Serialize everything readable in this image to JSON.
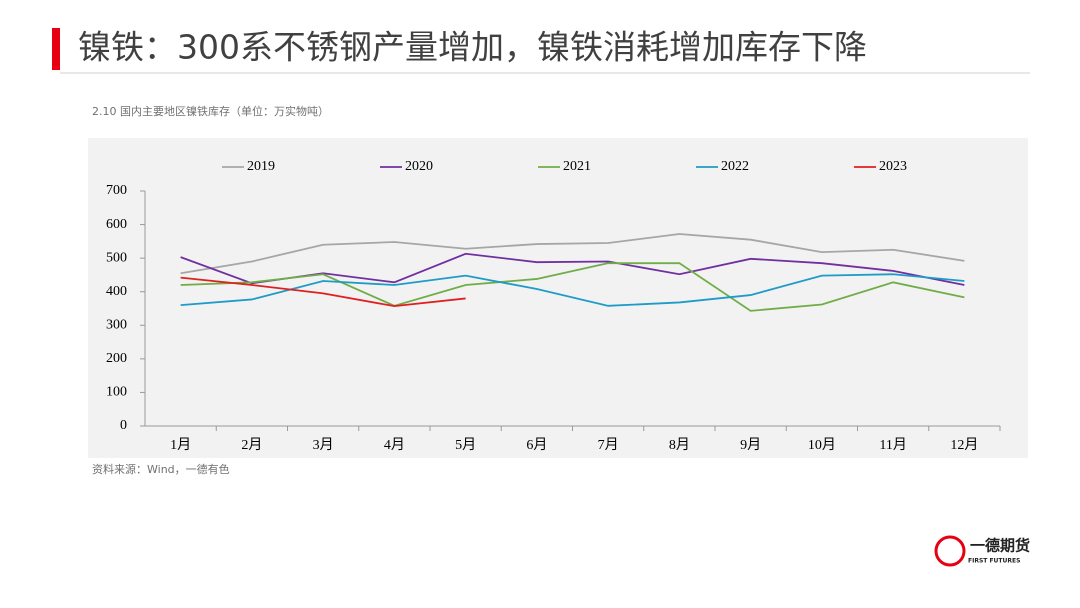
{
  "header": {
    "title": "镍铁：300系不锈钢产量增加，镍铁消耗增加库存下降"
  },
  "chart_data": {
    "type": "line",
    "title": "2.10 国内主要地区镍铁库存（单位：万实物吨）",
    "categories": [
      "1月",
      "2月",
      "3月",
      "4月",
      "5月",
      "6月",
      "7月",
      "8月",
      "9月",
      "10月",
      "11月",
      "12月"
    ],
    "series": [
      {
        "name": "2019",
        "color": "#a6a6a6",
        "values": [
          455,
          490,
          540,
          548,
          528,
          542,
          545,
          572,
          555,
          518,
          525,
          492
        ]
      },
      {
        "name": "2020",
        "color": "#7030a0",
        "values": [
          503,
          425,
          455,
          428,
          513,
          488,
          490,
          452,
          498,
          485,
          462,
          420
        ]
      },
      {
        "name": "2021",
        "color": "#70ad47",
        "values": [
          420,
          428,
          452,
          358,
          420,
          438,
          485,
          485,
          343,
          362,
          428,
          383
        ]
      },
      {
        "name": "2022",
        "color": "#1f9bc7",
        "values": [
          360,
          377,
          432,
          420,
          448,
          408,
          358,
          368,
          390,
          448,
          452,
          432
        ]
      },
      {
        "name": "2023",
        "color": "#e02020",
        "values": [
          442,
          420,
          395,
          357,
          380,
          null,
          null,
          null,
          null,
          null,
          null,
          null
        ]
      }
    ],
    "ylim": [
      0,
      700
    ],
    "yticks": [
      0,
      100,
      200,
      300,
      400,
      500,
      600,
      700
    ],
    "legend": "top",
    "source": "资料来源：Wind，一德有色"
  },
  "footer": {
    "logo": "一德期货",
    "logo_sub": "FIRST FUTURES"
  }
}
